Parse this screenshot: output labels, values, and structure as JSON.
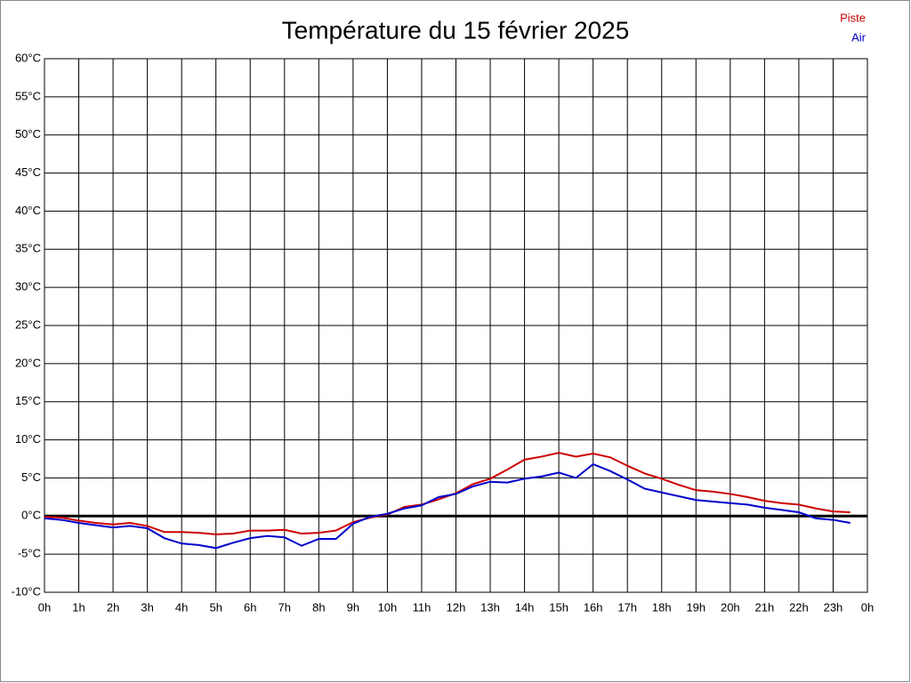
{
  "chart_data": {
    "type": "line",
    "title": "Température du 15 février 2025",
    "x": [
      0,
      0.5,
      1,
      1.5,
      2,
      2.5,
      3,
      3.5,
      4,
      4.5,
      5,
      5.5,
      6,
      6.5,
      7,
      7.5,
      8,
      8.5,
      9,
      9.5,
      10,
      10.5,
      11,
      11.5,
      12,
      12.5,
      13,
      13.5,
      14,
      14.5,
      15,
      15.5,
      16,
      16.5,
      17,
      17.5,
      18,
      18.5,
      19,
      19.5,
      20,
      20.5,
      21,
      21.5,
      22,
      22.5,
      23,
      23.5
    ],
    "series": [
      {
        "name": "Piste",
        "color": "#cc0000",
        "values": [
          -0.1,
          -0.2,
          -0.6,
          -0.9,
          -1.1,
          -0.9,
          -1.3,
          -2.1,
          -2.1,
          -2.2,
          -2.4,
          -2.3,
          -1.9,
          -1.9,
          -1.8,
          -2.3,
          -2.2,
          -1.9,
          -0.8,
          -0.2,
          0.2,
          1.2,
          1.5,
          2.2,
          3.0,
          4.2,
          4.9,
          6.1,
          7.4,
          7.8,
          8.3,
          7.8,
          8.2,
          7.7,
          6.6,
          5.6,
          4.9,
          4.1,
          3.4,
          3.2,
          2.9,
          2.5,
          2.0,
          1.7,
          1.5,
          1.0,
          0.6,
          0.5
        ]
      },
      {
        "name": "Air",
        "color": "#0000cc",
        "values": [
          -0.3,
          -0.5,
          -0.9,
          -1.2,
          -1.5,
          -1.3,
          -1.6,
          -2.9,
          -3.6,
          -3.8,
          -4.2,
          -3.5,
          -2.9,
          -2.6,
          -2.8,
          -3.9,
          -3.0,
          -3.0,
          -1.0,
          -0.1,
          0.3,
          1.0,
          1.4,
          2.5,
          2.9,
          3.9,
          4.5,
          4.4,
          4.9,
          5.2,
          5.7,
          5.0,
          6.8,
          5.9,
          4.8,
          3.6,
          3.1,
          2.6,
          2.1,
          1.9,
          1.7,
          1.5,
          1.1,
          0.8,
          0.5,
          -0.3,
          -0.5,
          -0.9
        ]
      }
    ],
    "xlim": [
      0,
      24
    ],
    "xticks": [
      {
        "value": 0,
        "label": "0h"
      },
      {
        "value": 1,
        "label": "1h"
      },
      {
        "value": 2,
        "label": "2h"
      },
      {
        "value": 3,
        "label": "3h"
      },
      {
        "value": 4,
        "label": "4h"
      },
      {
        "value": 5,
        "label": "5h"
      },
      {
        "value": 6,
        "label": "6h"
      },
      {
        "value": 7,
        "label": "7h"
      },
      {
        "value": 8,
        "label": "8h"
      },
      {
        "value": 9,
        "label": "9h"
      },
      {
        "value": 10,
        "label": "10h"
      },
      {
        "value": 11,
        "label": "11h"
      },
      {
        "value": 12,
        "label": "12h"
      },
      {
        "value": 13,
        "label": "13h"
      },
      {
        "value": 14,
        "label": "14h"
      },
      {
        "value": 15,
        "label": "15h"
      },
      {
        "value": 16,
        "label": "16h"
      },
      {
        "value": 17,
        "label": "17h"
      },
      {
        "value": 18,
        "label": "18h"
      },
      {
        "value": 19,
        "label": "19h"
      },
      {
        "value": 20,
        "label": "20h"
      },
      {
        "value": 21,
        "label": "21h"
      },
      {
        "value": 22,
        "label": "22h"
      },
      {
        "value": 23,
        "label": "23h"
      },
      {
        "value": 24,
        "label": "0h"
      }
    ],
    "ylim": [
      -10,
      60
    ],
    "yticks": [
      {
        "value": -10,
        "label": "-10°C"
      },
      {
        "value": -5,
        "label": "-5°C"
      },
      {
        "value": 0,
        "label": "0°C"
      },
      {
        "value": 5,
        "label": "5°C"
      },
      {
        "value": 10,
        "label": "10°C"
      },
      {
        "value": 15,
        "label": "15°C"
      },
      {
        "value": 20,
        "label": "20°C"
      },
      {
        "value": 25,
        "label": "25°C"
      },
      {
        "value": 30,
        "label": "30°C"
      },
      {
        "value": 35,
        "label": "35°C"
      },
      {
        "value": 40,
        "label": "40°C"
      },
      {
        "value": 45,
        "label": "45°C"
      },
      {
        "value": 50,
        "label": "50°C"
      },
      {
        "value": 55,
        "label": "55°C"
      },
      {
        "value": 60,
        "label": "60°C"
      }
    ],
    "grid": true,
    "legend": "top-right"
  }
}
